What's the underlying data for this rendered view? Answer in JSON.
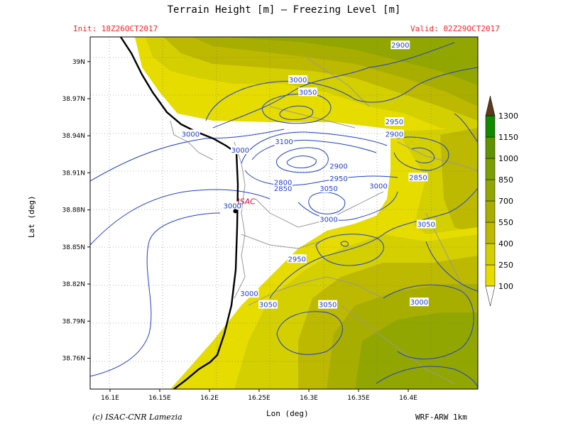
{
  "title": "Terrain Height [m] — Freezing Level [m]",
  "init_label": "Init: 18Z26OCT2017",
  "valid_label": "Valid: 02Z29OCT2017",
  "credit": "(c) ISAC-CNR Lamezia",
  "model": "WRF-ARW 1km",
  "station_label": "ISAC",
  "colors": {
    "yellow": "#e6dc00",
    "olive1": "#d4cf00",
    "olive2": "#bdb800",
    "olive3": "#a8ae00",
    "olive4": "#92a600",
    "olive5": "#7b9e00",
    "olive6": "#5f9400",
    "green": "#128a00",
    "brown": "#5a3a1a",
    "contour": "#1f3fd0",
    "coast": "#000000",
    "roads": "#999999"
  },
  "chart_data": {
    "type": "heatmap",
    "xlabel": "Lon (deg)",
    "ylabel": "Lat (deg)",
    "xlim": [
      16.08,
      16.47
    ],
    "ylim": [
      38.735,
      39.02
    ],
    "x_ticks": [
      {
        "value": 16.1,
        "label": "16.1E"
      },
      {
        "value": 16.15,
        "label": "16.15E"
      },
      {
        "value": 16.2,
        "label": "16.2E"
      },
      {
        "value": 16.25,
        "label": "16.25E"
      },
      {
        "value": 16.3,
        "label": "16.3E"
      },
      {
        "value": 16.35,
        "label": "16.35E"
      },
      {
        "value": 16.4,
        "label": "16.4E"
      }
    ],
    "y_ticks": [
      {
        "value": 39.0,
        "label": "39N"
      },
      {
        "value": 38.97,
        "label": "38.97N"
      },
      {
        "value": 38.94,
        "label": "38.94N"
      },
      {
        "value": 38.91,
        "label": "38.91N"
      },
      {
        "value": 38.88,
        "label": "38.88N"
      },
      {
        "value": 38.85,
        "label": "38.85N"
      },
      {
        "value": 38.82,
        "label": "38.82N"
      },
      {
        "value": 38.79,
        "label": "38.79N"
      },
      {
        "value": 38.76,
        "label": "38.76N"
      }
    ],
    "colorbar_levels": [
      "100",
      "250",
      "400",
      "550",
      "700",
      "850",
      "1000",
      "1150",
      "1300"
    ],
    "contour_labels": [
      {
        "text": "2900",
        "lon": 16.392,
        "lat": 39.013
      },
      {
        "text": "3000",
        "lon": 16.289,
        "lat": 38.985
      },
      {
        "text": "3050",
        "lon": 16.299,
        "lat": 38.975
      },
      {
        "text": "2950",
        "lon": 16.386,
        "lat": 38.951
      },
      {
        "text": "2900",
        "lon": 16.386,
        "lat": 38.941
      },
      {
        "text": "3000",
        "lon": 16.181,
        "lat": 38.941
      },
      {
        "text": "3100",
        "lon": 16.275,
        "lat": 38.935
      },
      {
        "text": "3000",
        "lon": 16.231,
        "lat": 38.928
      },
      {
        "text": "2900",
        "lon": 16.33,
        "lat": 38.915
      },
      {
        "text": "2950",
        "lon": 16.33,
        "lat": 38.905
      },
      {
        "text": "2850",
        "lon": 16.41,
        "lat": 38.906
      },
      {
        "text": "2850",
        "lon": 16.274,
        "lat": 38.897
      },
      {
        "text": "2800",
        "lon": 16.274,
        "lat": 38.902
      },
      {
        "text": "3000",
        "lon": 16.37,
        "lat": 38.899
      },
      {
        "text": "3050",
        "lon": 16.32,
        "lat": 38.897
      },
      {
        "text": "3000",
        "lon": 16.223,
        "lat": 38.883
      },
      {
        "text": "3000",
        "lon": 16.32,
        "lat": 38.872
      },
      {
        "text": "3050",
        "lon": 16.418,
        "lat": 38.868
      },
      {
        "text": "2950",
        "lon": 16.288,
        "lat": 38.84
      },
      {
        "text": "3000",
        "lon": 16.24,
        "lat": 38.812
      },
      {
        "text": "3050",
        "lon": 16.259,
        "lat": 38.803
      },
      {
        "text": "3050",
        "lon": 16.319,
        "lat": 38.803
      },
      {
        "text": "3000",
        "lon": 16.411,
        "lat": 38.805
      }
    ],
    "station": {
      "lon": 16.226,
      "lat": 38.879
    }
  }
}
